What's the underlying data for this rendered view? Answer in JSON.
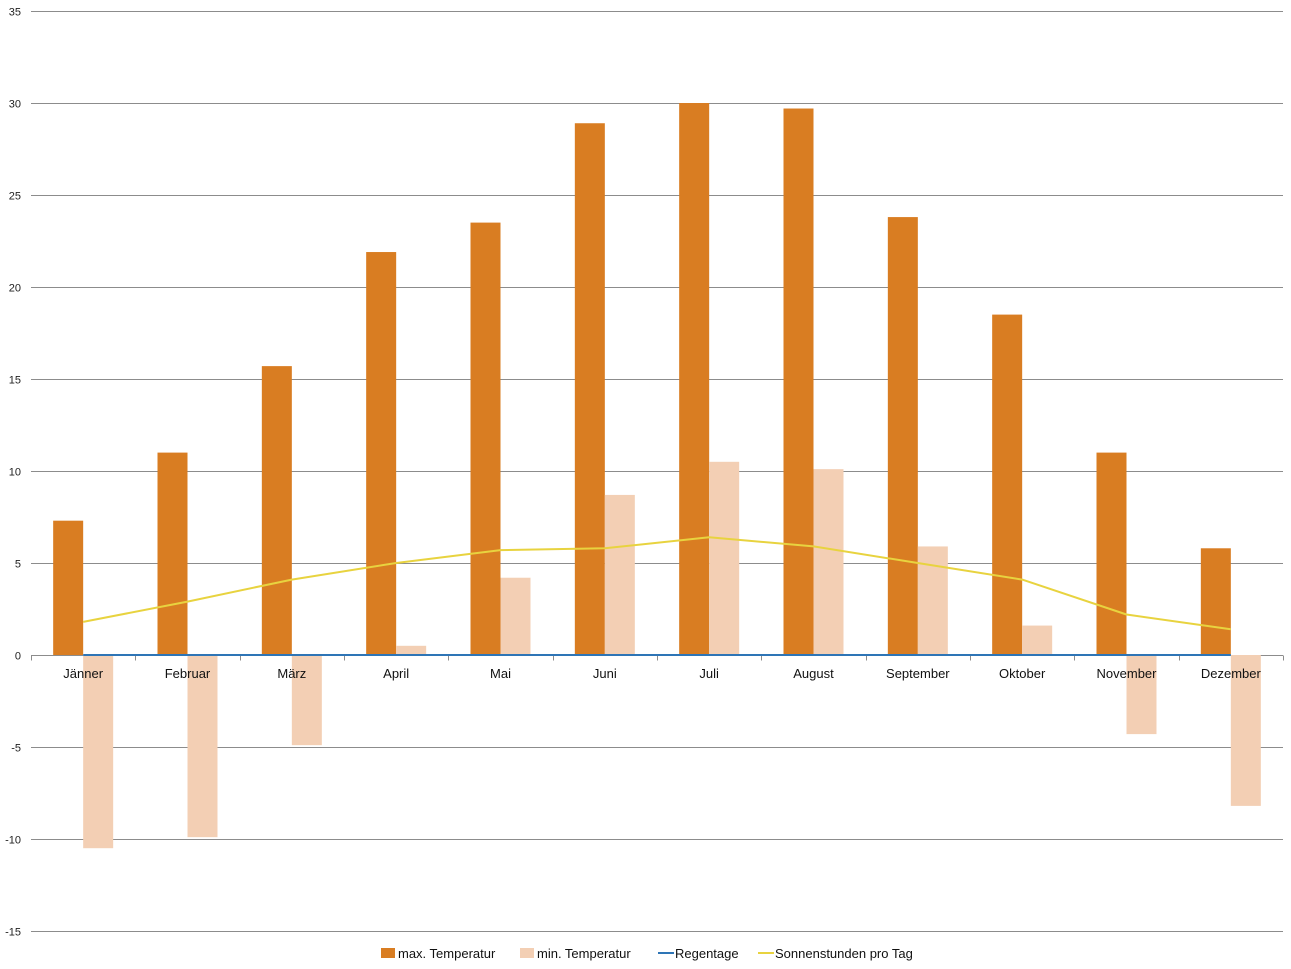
{
  "chart_data": {
    "type": "bar",
    "categories": [
      "Jänner",
      "Februar",
      "März",
      "April",
      "Mai",
      "Juni",
      "Juli",
      "August",
      "September",
      "Oktober",
      "November",
      "Dezember"
    ],
    "series": [
      {
        "name": "max. Temperatur",
        "type": "bar",
        "color": "#d97d22",
        "values": [
          7.3,
          11.0,
          15.7,
          21.9,
          23.5,
          28.9,
          30.0,
          29.7,
          23.8,
          18.5,
          11.0,
          5.8
        ]
      },
      {
        "name": "min. Temperatur",
        "type": "bar",
        "color": "#f3cfb4",
        "values": [
          -10.5,
          -9.9,
          -4.9,
          0.5,
          4.2,
          8.7,
          10.5,
          10.1,
          5.9,
          1.6,
          -4.3,
          -8.2
        ]
      },
      {
        "name": "Regentage",
        "type": "line",
        "color": "#2e75b6",
        "values": [
          0,
          0,
          0,
          0,
          0,
          0,
          0,
          0,
          0,
          0,
          0,
          0
        ]
      },
      {
        "name": "Sonnenstunden pro Tag",
        "type": "line",
        "color": "#e8d33f",
        "values": [
          1.8,
          2.9,
          4.1,
          5.0,
          5.7,
          5.8,
          6.4,
          5.9,
          5.0,
          4.1,
          2.2,
          1.4
        ]
      }
    ],
    "ylim": [
      -15,
      35
    ],
    "yticks": [
      35,
      30,
      25,
      20,
      15,
      10,
      5,
      0,
      -5,
      -10,
      -15
    ],
    "grid": true,
    "legend_position": "bottom",
    "title": "",
    "xlabel": "",
    "ylabel": ""
  }
}
